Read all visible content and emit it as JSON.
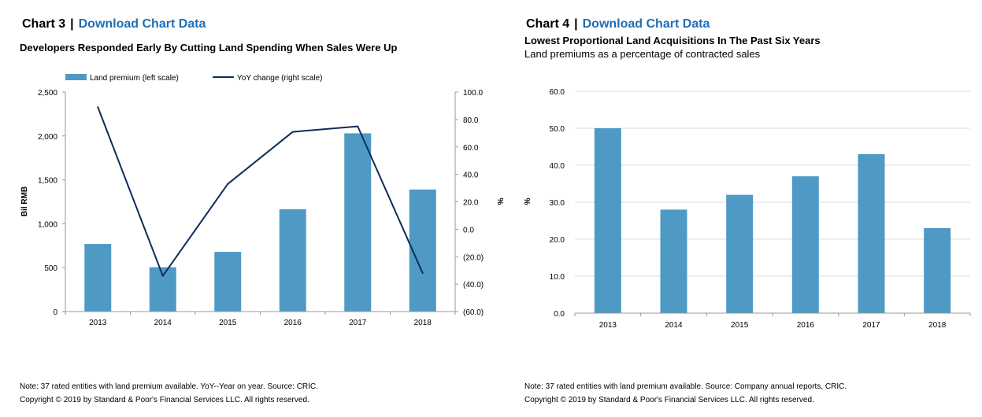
{
  "colors": {
    "bar": "#4f9ac4",
    "line": "#0d2d5a",
    "link": "#1f6fb5",
    "grid": "#dcdcdc",
    "axis": "#999999"
  },
  "panels": [
    {
      "chart_label": "Chart 3",
      "separator": "|",
      "download_label": "Download Chart Data",
      "title": "Developers Responded Early By Cutting Land Spending When Sales Were Up",
      "subtitle": "",
      "note": "Note: 37 rated entities with land premium available. YoY--Year on year. Source: CRIC.",
      "copyright": "Copyright © 2019 by Standard & Poor's Financial Services LLC. All rights reserved."
    },
    {
      "chart_label": "Chart 4",
      "separator": "|",
      "download_label": "Download Chart Data",
      "title": "Lowest Proportional Land Acquisitions In The Past Six Years",
      "subtitle": "Land premiums as a percentage of contracted sales",
      "note": "Note: 37 rated entities with land premium available. Source: Company annual reports, CRIC.",
      "copyright": "Copyright © 2019 by Standard & Poor's Financial Services LLC. All rights reserved."
    }
  ],
  "chart_data": [
    {
      "type": "bar",
      "categories": [
        "2013",
        "2014",
        "2015",
        "2016",
        "2017",
        "2018"
      ],
      "series": [
        {
          "name": "Land premium (left scale)",
          "type": "bar",
          "axis": "left",
          "values": [
            770,
            505,
            680,
            1165,
            2030,
            1390
          ]
        },
        {
          "name": "YoY change (right scale)",
          "type": "line",
          "axis": "right",
          "values": [
            89,
            -34,
            33,
            71,
            75,
            -32
          ]
        }
      ],
      "ylabel": "Bil RMB",
      "y2label": "%",
      "ylim": [
        0,
        2500
      ],
      "y2lim": [
        -60,
        100
      ],
      "yticks": [
        "0",
        "500",
        "1,000",
        "1,500",
        "2,000",
        "2,500"
      ],
      "y2ticks": [
        "(60.0)",
        "(40.0)",
        "(20.0)",
        "0.0",
        "20.0",
        "40.0",
        "60.0",
        "80.0",
        "100.0"
      ],
      "grid": false,
      "legend": "top-left"
    },
    {
      "type": "bar",
      "categories": [
        "2013",
        "2014",
        "2015",
        "2016",
        "2017",
        "2018"
      ],
      "series": [
        {
          "values": [
            50,
            28,
            32,
            37,
            43,
            23
          ]
        }
      ],
      "ylabel": "%",
      "ylim": [
        0,
        60
      ],
      "yticks": [
        "0.0",
        "10.0",
        "20.0",
        "30.0",
        "40.0",
        "50.0",
        "60.0"
      ],
      "grid": true
    }
  ]
}
